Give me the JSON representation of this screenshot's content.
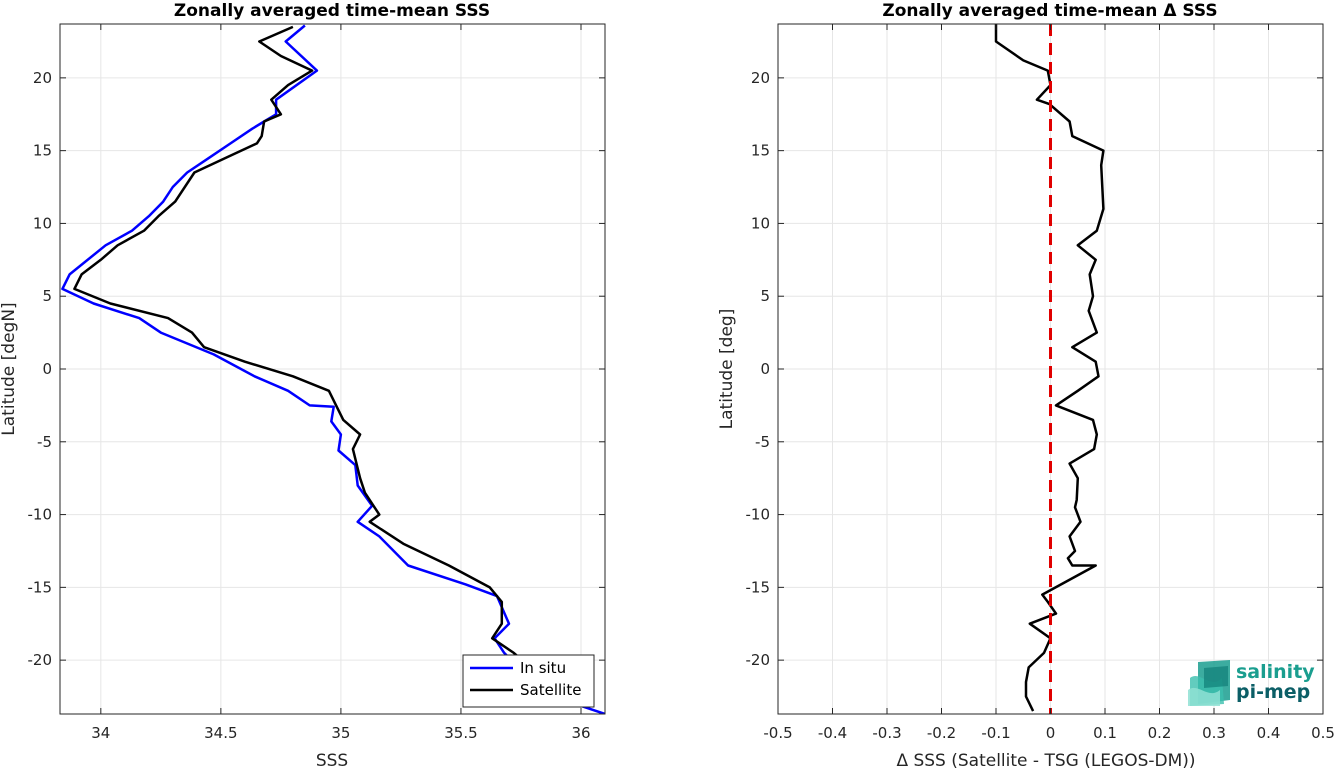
{
  "chart_data": [
    {
      "type": "line",
      "title": "Zonally averaged time-mean SSS",
      "xlabel": "SSS",
      "ylabel": "Latitude [degN]",
      "xlim": [
        33.83,
        36.1
      ],
      "ylim": [
        -23.7,
        23.7
      ],
      "xticks": [
        "34",
        "34.5",
        "35",
        "35.5",
        "36"
      ],
      "xtick_values": [
        34,
        34.5,
        35,
        35.5,
        36
      ],
      "yticks": [
        "20",
        "15",
        "10",
        "5",
        "0",
        "-5",
        "-10",
        "-15",
        "-20"
      ],
      "ytick_values": [
        20,
        15,
        10,
        5,
        0,
        -5,
        -10,
        -15,
        -20
      ],
      "grid": true,
      "legend_position": "bottom-right",
      "series": [
        {
          "name": "In situ",
          "color": "#0000ff",
          "x": [
            34.85,
            34.77,
            34.9,
            34.73,
            34.73,
            34.68,
            34.63,
            34.54,
            34.45,
            34.36,
            34.3,
            34.26,
            34.2,
            34.13,
            34.02,
            33.87,
            33.84,
            33.97,
            34.16,
            34.25,
            34.47,
            34.64,
            34.78,
            34.87,
            34.97,
            34.96,
            35.0,
            34.99,
            35.06,
            35.07,
            35.13,
            35.07,
            35.16,
            35.28,
            35.52,
            35.65,
            35.7,
            35.64,
            35.68,
            35.8,
            35.92,
            36.1
          ],
          "y": [
            23.6,
            22.5,
            20.5,
            18.5,
            17.5,
            17.0,
            16.5,
            15.5,
            14.5,
            13.5,
            12.5,
            11.5,
            10.5,
            9.5,
            8.5,
            6.5,
            5.5,
            4.5,
            3.5,
            2.5,
            1.0,
            -0.5,
            -1.5,
            -2.5,
            -2.6,
            -3.6,
            -4.5,
            -5.6,
            -6.6,
            -8.0,
            -9.4,
            -10.5,
            -11.5,
            -13.5,
            -14.8,
            -15.6,
            -17.5,
            -18.5,
            -19.5,
            -21.5,
            -22.7,
            -23.7
          ]
        },
        {
          "name": "Satellite",
          "color": "#000000",
          "x": [
            34.8,
            34.66,
            34.75,
            34.88,
            34.78,
            34.71,
            34.75,
            34.68,
            34.67,
            34.65,
            34.52,
            34.39,
            34.31,
            34.24,
            34.18,
            34.07,
            34.0,
            33.92,
            33.89,
            34.04,
            34.28,
            34.38,
            34.43,
            34.6,
            34.8,
            34.95,
            34.98,
            35.01,
            35.08,
            35.05,
            35.08,
            35.1,
            35.14,
            35.16,
            35.12,
            35.26,
            35.45,
            35.62,
            35.67,
            35.67,
            35.63,
            35.72,
            35.86,
            36.0
          ],
          "y": [
            23.5,
            22.5,
            21.5,
            20.5,
            19.5,
            18.5,
            17.5,
            17.0,
            16.0,
            15.5,
            14.5,
            13.5,
            11.5,
            10.5,
            9.5,
            8.5,
            7.5,
            6.5,
            5.5,
            4.5,
            3.5,
            2.5,
            1.5,
            0.5,
            -0.5,
            -1.5,
            -2.5,
            -3.5,
            -4.5,
            -5.5,
            -7.5,
            -8.5,
            -9.5,
            -10.0,
            -10.5,
            -12.0,
            -13.5,
            -15.0,
            -16.0,
            -17.5,
            -18.5,
            -19.5,
            -21.5,
            -23.2
          ]
        }
      ]
    },
    {
      "type": "line",
      "title": "Zonally averaged time-mean Δ SSS",
      "xlabel": "Δ SSS (Satellite - TSG (LEGOS-DM))",
      "ylabel": "Latitude [deg]",
      "xlim": [
        -0.5,
        0.5
      ],
      "ylim": [
        -23.7,
        23.7
      ],
      "xticks": [
        "-0.5",
        "-0.4",
        "-0.3",
        "-0.2",
        "-0.1",
        "0",
        "0.1",
        "0.2",
        "0.3",
        "0.4",
        "0.5"
      ],
      "xtick_values": [
        -0.5,
        -0.4,
        -0.3,
        -0.2,
        -0.1,
        0,
        0.1,
        0.2,
        0.3,
        0.4,
        0.5
      ],
      "yticks": [
        "20",
        "15",
        "10",
        "5",
        "0",
        "-5",
        "-10",
        "-15",
        "-20"
      ],
      "ytick_values": [
        20,
        15,
        10,
        5,
        0,
        -5,
        -10,
        -15,
        -20
      ],
      "grid": true,
      "reference_line": {
        "x": 0,
        "color": "#e00000",
        "style": "dashed"
      },
      "series": [
        {
          "color": "#000000",
          "x": [
            -0.1,
            -0.1,
            -0.05,
            -0.005,
            0.0,
            -0.025,
            -0.002,
            0.035,
            0.04,
            0.097,
            0.093,
            0.095,
            0.097,
            0.085,
            0.05,
            0.083,
            0.072,
            0.078,
            0.07,
            0.085,
            0.04,
            0.083,
            0.088,
            0.05,
            0.01,
            0.078,
            0.085,
            0.08,
            0.035,
            0.05,
            0.048,
            0.045,
            0.055,
            0.035,
            0.045,
            0.032,
            0.04,
            0.083,
            -0.015,
            -0.005,
            0.01,
            -0.038,
            0.0,
            -0.012,
            -0.04,
            -0.045,
            -0.045,
            -0.032
          ],
          "y": [
            23.7,
            22.5,
            21.2,
            20.5,
            19.5,
            18.5,
            18.2,
            17.0,
            16.0,
            15.0,
            14.0,
            12.5,
            11.0,
            9.5,
            8.5,
            7.5,
            6.5,
            5.0,
            4.0,
            2.5,
            1.5,
            0.5,
            -0.5,
            -1.5,
            -2.5,
            -3.5,
            -4.5,
            -5.5,
            -6.5,
            -7.5,
            -9.0,
            -9.5,
            -10.5,
            -11.5,
            -12.5,
            -13.0,
            -13.5,
            -13.5,
            -15.5,
            -16.0,
            -16.8,
            -17.5,
            -18.5,
            -19.5,
            -20.5,
            -21.5,
            -22.5,
            -23.5
          ]
        }
      ]
    }
  ],
  "legend": {
    "items": [
      {
        "label": "In situ",
        "color": "#0000ff"
      },
      {
        "label": "Satellite",
        "color": "#000000"
      }
    ]
  },
  "logo": {
    "line1": "salinity",
    "line2": "pi-mep"
  }
}
